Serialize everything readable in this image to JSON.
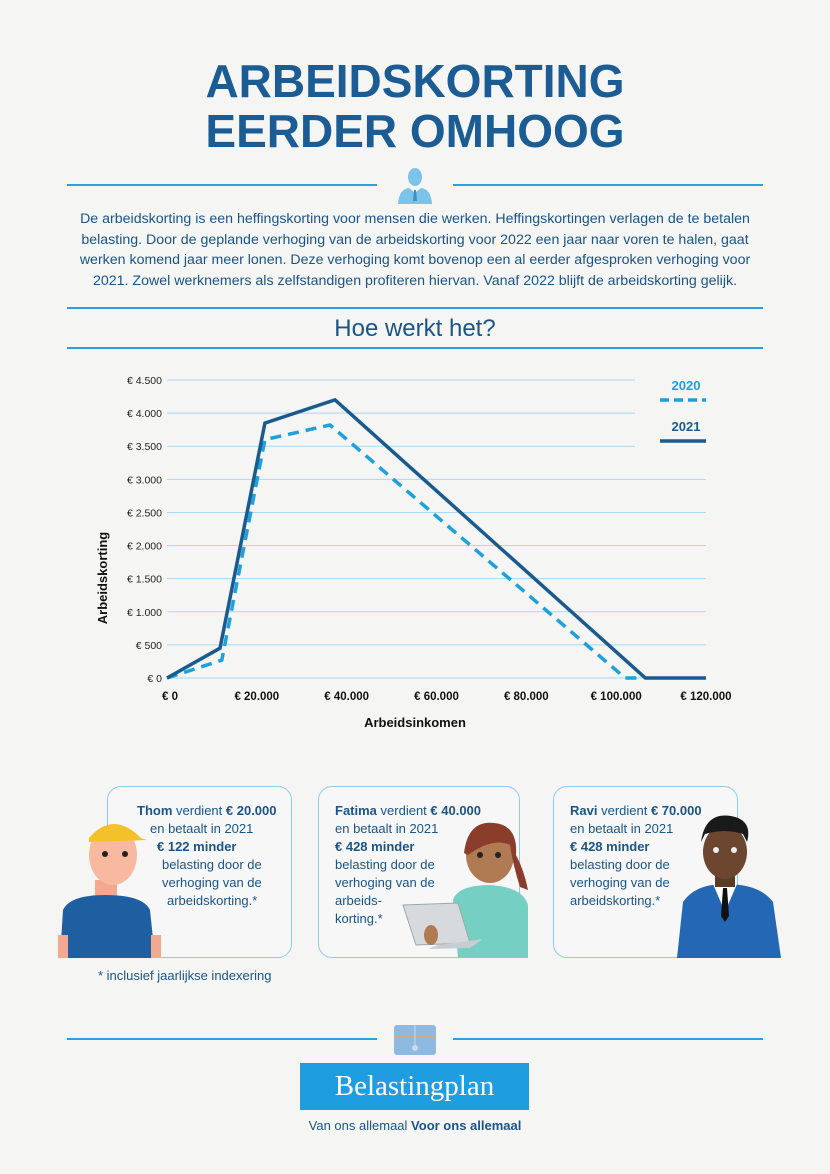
{
  "title": {
    "line1": "ARBEIDSKORTING",
    "line2": "EERDER OMHOOG"
  },
  "intro": "De arbeidskorting is een heffingskorting voor mensen die werken. Heffingskortingen verlagen de te betalen belasting. Door de geplande verhoging van de arbeidskorting voor 2022 een jaar naar voren te halen, gaat werken komend jaar meer lonen. Deze verhoging komt bovenop een al eerder afgesproken verhoging voor 2021. Zowel werknemers als zelfstandigen profiteren hiervan. Vanaf 2022 blijft de arbeidskorting gelijk.",
  "subtitle": "Hoe werkt het?",
  "colors": {
    "dark": "#1a5a8f",
    "light": "#1ea0dd",
    "grid": "#a9d8f1"
  },
  "chart_data": {
    "type": "line",
    "xlabel": "Arbeidsinkomen",
    "ylabel": "Arbeidskorting",
    "xlim": [
      0,
      120000
    ],
    "ylim": [
      0,
      4500
    ],
    "xticks": [
      0,
      20000,
      40000,
      60000,
      80000,
      100000,
      120000
    ],
    "xtick_labels": [
      "€ 0",
      "€ 20.000",
      "€ 40.000",
      "€ 60.000",
      "€ 80.000",
      "€ 100.000",
      "€ 120.000"
    ],
    "yticks": [
      0,
      500,
      1000,
      1500,
      2000,
      2500,
      3000,
      3500,
      4000,
      4500
    ],
    "ytick_labels": [
      "€ 0",
      "€ 500",
      "€ 1.000",
      "€ 1.500",
      "€ 2.000",
      "€ 2.500",
      "€ 3.000",
      "€ 3.500",
      "€ 4.000",
      "€ 4.500"
    ],
    "grid": true,
    "legend_position": "top-right",
    "series": [
      {
        "name": "2020",
        "style": "dashed",
        "x": [
          0,
          12200,
          21800,
          36300,
          102000,
          104600
        ],
        "y": [
          0,
          270,
          3600,
          3820,
          0,
          0
        ]
      },
      {
        "name": "2021",
        "style": "solid",
        "x": [
          0,
          11800,
          21800,
          37400,
          106500,
          120000
        ],
        "y": [
          0,
          450,
          3850,
          4200,
          0,
          0
        ]
      }
    ]
  },
  "cards": [
    {
      "name": "Thom",
      "earns": "verdient",
      "amount": "€ 20.000",
      "line2": "en betaalt in 2021",
      "saving": "€ 122 minder",
      "rest": [
        "belasting door de",
        "verhoging van de",
        "arbeidskorting.*"
      ]
    },
    {
      "name": "Fatima",
      "earns": "verdient",
      "amount": "€ 40.000",
      "line2": "en betaalt in 2021",
      "saving": "€ 428 minder",
      "rest": [
        "belasting door de",
        "verhoging van de",
        "arbeids-",
        "korting.*"
      ]
    },
    {
      "name": "Ravi",
      "earns": "verdient",
      "amount": "€ 70.000",
      "line2": "en betaalt in 2021",
      "saving": "€ 428 minder",
      "rest": [
        "belasting door de",
        "verhoging van de",
        "arbeidskorting.*"
      ]
    }
  ],
  "footnote": "* inclusief jaarlijkse indexering",
  "footer": {
    "brand": "Belastingplan",
    "tag_regular": "Van ons allemaal",
    "tag_bold": "Voor ons allemaal"
  }
}
